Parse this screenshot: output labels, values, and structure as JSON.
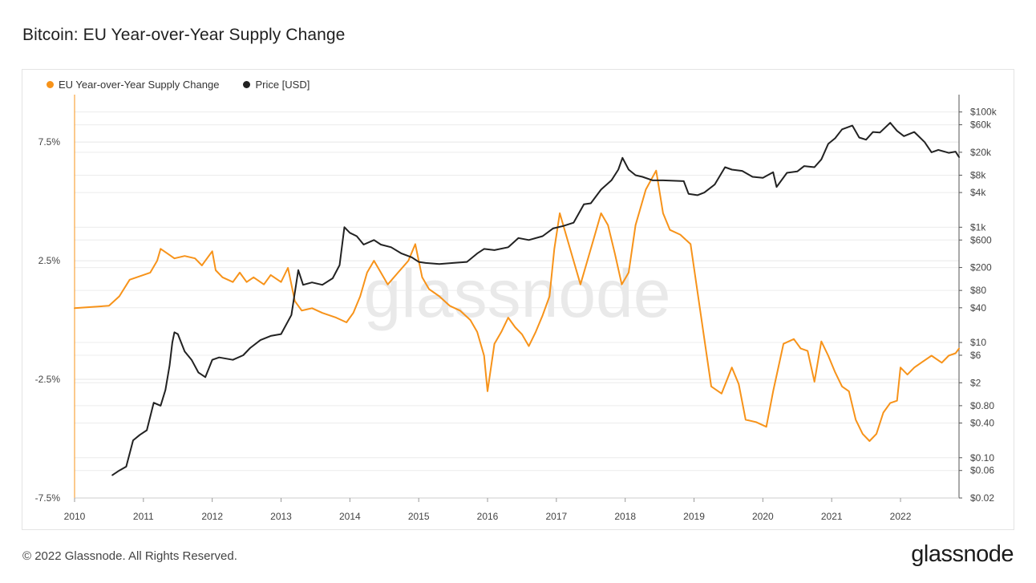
{
  "header": {
    "title": "Bitcoin: EU Year-over-Year Supply Change"
  },
  "legend": {
    "items": [
      {
        "label": "EU Year-over-Year Supply Change",
        "color": "#F7931A"
      },
      {
        "label": "Price [USD]",
        "color": "#222222"
      }
    ]
  },
  "watermark": "glassnode",
  "footer": {
    "copyright": "© 2022 Glassnode. All Rights Reserved.",
    "logo": "glassnode"
  },
  "chart_data": {
    "type": "line",
    "x_axis": {
      "min": 2010,
      "max": 2022.85,
      "ticks": [
        2010,
        2011,
        2012,
        2013,
        2014,
        2015,
        2016,
        2017,
        2018,
        2019,
        2020,
        2021,
        2022
      ],
      "tick_labels": [
        "2010",
        "2011",
        "2012",
        "2013",
        "2014",
        "2015",
        "2016",
        "2017",
        "2018",
        "2019",
        "2020",
        "2021",
        "2022"
      ]
    },
    "y_left": {
      "min": -7.5,
      "max": 9.5,
      "ticks": [
        7.5,
        2.5,
        -2.5,
        -7.5
      ],
      "tick_labels": [
        "7.5%",
        "2.5%",
        "-2.5%",
        "-7.5%"
      ]
    },
    "y_right": {
      "scale": "log",
      "min": 0.02,
      "max": 200000,
      "ticks": [
        100000,
        60000,
        20000,
        8000,
        4000,
        1000,
        600,
        200,
        80,
        40,
        10,
        6,
        2,
        0.8,
        0.4,
        0.1,
        0.06,
        0.02
      ],
      "tick_labels": [
        "$100k",
        "$60k",
        "$20k",
        "$8k",
        "$4k",
        "$1k",
        "$600",
        "$200",
        "$80",
        "$40",
        "$10",
        "$6",
        "$2",
        "$0.80",
        "$0.40",
        "$0.10",
        "$0.06",
        "$0.02"
      ]
    },
    "grid": true,
    "legend_position": "top-left",
    "series": [
      {
        "name": "EU Year-over-Year Supply Change",
        "axis": "left",
        "color": "#F7931A",
        "points": [
          [
            2010.0,
            0.5
          ],
          [
            2010.5,
            0.6
          ],
          [
            2010.65,
            1.0
          ],
          [
            2010.8,
            1.7
          ],
          [
            2011.0,
            1.9
          ],
          [
            2011.1,
            2.0
          ],
          [
            2011.2,
            2.5
          ],
          [
            2011.25,
            3.0
          ],
          [
            2011.35,
            2.8
          ],
          [
            2011.45,
            2.6
          ],
          [
            2011.6,
            2.7
          ],
          [
            2011.75,
            2.6
          ],
          [
            2011.85,
            2.3
          ],
          [
            2012.0,
            2.9
          ],
          [
            2012.05,
            2.1
          ],
          [
            2012.15,
            1.8
          ],
          [
            2012.3,
            1.6
          ],
          [
            2012.4,
            2.0
          ],
          [
            2012.5,
            1.6
          ],
          [
            2012.6,
            1.8
          ],
          [
            2012.75,
            1.5
          ],
          [
            2012.85,
            1.9
          ],
          [
            2013.0,
            1.6
          ],
          [
            2013.1,
            2.2
          ],
          [
            2013.2,
            0.8
          ],
          [
            2013.3,
            0.4
          ],
          [
            2013.45,
            0.5
          ],
          [
            2013.6,
            0.3
          ],
          [
            2013.8,
            0.1
          ],
          [
            2013.95,
            -0.1
          ],
          [
            2014.05,
            0.3
          ],
          [
            2014.15,
            1.0
          ],
          [
            2014.25,
            2.0
          ],
          [
            2014.35,
            2.5
          ],
          [
            2014.45,
            2.0
          ],
          [
            2014.55,
            1.5
          ],
          [
            2014.7,
            2.0
          ],
          [
            2014.85,
            2.5
          ],
          [
            2014.95,
            3.2
          ],
          [
            2015.05,
            1.8
          ],
          [
            2015.15,
            1.3
          ],
          [
            2015.3,
            1.0
          ],
          [
            2015.45,
            0.6
          ],
          [
            2015.6,
            0.4
          ],
          [
            2015.75,
            0.0
          ],
          [
            2015.85,
            -0.5
          ],
          [
            2015.95,
            -1.5
          ],
          [
            2016.0,
            -3.0
          ],
          [
            2016.1,
            -1.0
          ],
          [
            2016.2,
            -0.5
          ],
          [
            2016.3,
            0.1
          ],
          [
            2016.4,
            -0.3
          ],
          [
            2016.5,
            -0.6
          ],
          [
            2016.6,
            -1.1
          ],
          [
            2016.7,
            -0.5
          ],
          [
            2016.8,
            0.2
          ],
          [
            2016.9,
            1.0
          ],
          [
            2016.97,
            3.0
          ],
          [
            2017.05,
            4.5
          ],
          [
            2017.15,
            3.5
          ],
          [
            2017.25,
            2.5
          ],
          [
            2017.35,
            1.5
          ],
          [
            2017.45,
            2.5
          ],
          [
            2017.55,
            3.5
          ],
          [
            2017.65,
            4.5
          ],
          [
            2017.75,
            4.0
          ],
          [
            2017.85,
            2.8
          ],
          [
            2017.95,
            1.5
          ],
          [
            2018.05,
            2.0
          ],
          [
            2018.15,
            4.0
          ],
          [
            2018.3,
            5.5
          ],
          [
            2018.45,
            6.3
          ],
          [
            2018.55,
            4.5
          ],
          [
            2018.65,
            3.8
          ],
          [
            2018.8,
            3.6
          ],
          [
            2018.95,
            3.2
          ],
          [
            2019.05,
            1.2
          ],
          [
            2019.15,
            -0.8
          ],
          [
            2019.25,
            -2.8
          ],
          [
            2019.4,
            -3.1
          ],
          [
            2019.55,
            -2.0
          ],
          [
            2019.65,
            -2.7
          ],
          [
            2019.75,
            -4.2
          ],
          [
            2019.9,
            -4.3
          ],
          [
            2020.05,
            -4.5
          ],
          [
            2020.15,
            -3.0
          ],
          [
            2020.3,
            -1.0
          ],
          [
            2020.45,
            -0.8
          ],
          [
            2020.55,
            -1.2
          ],
          [
            2020.65,
            -1.3
          ],
          [
            2020.75,
            -2.6
          ],
          [
            2020.85,
            -0.9
          ],
          [
            2020.95,
            -1.5
          ],
          [
            2021.05,
            -2.2
          ],
          [
            2021.15,
            -2.8
          ],
          [
            2021.25,
            -3.0
          ],
          [
            2021.35,
            -4.2
          ],
          [
            2021.45,
            -4.8
          ],
          [
            2021.55,
            -5.1
          ],
          [
            2021.65,
            -4.8
          ],
          [
            2021.75,
            -3.9
          ],
          [
            2021.85,
            -3.5
          ],
          [
            2021.95,
            -3.4
          ],
          [
            2022.0,
            -2.0
          ],
          [
            2022.1,
            -2.3
          ],
          [
            2022.2,
            -2.0
          ],
          [
            2022.3,
            -1.8
          ],
          [
            2022.45,
            -1.5
          ],
          [
            2022.6,
            -1.8
          ],
          [
            2022.7,
            -1.5
          ],
          [
            2022.8,
            -1.4
          ],
          [
            2022.85,
            -1.2
          ]
        ]
      },
      {
        "name": "Price [USD]",
        "axis": "right",
        "color": "#222222",
        "points": [
          [
            2010.55,
            0.05
          ],
          [
            2010.65,
            0.06
          ],
          [
            2010.75,
            0.07
          ],
          [
            2010.85,
            0.2
          ],
          [
            2010.95,
            0.25
          ],
          [
            2011.05,
            0.3
          ],
          [
            2011.15,
            0.9
          ],
          [
            2011.25,
            0.8
          ],
          [
            2011.32,
            1.5
          ],
          [
            2011.38,
            4.0
          ],
          [
            2011.42,
            10.0
          ],
          [
            2011.45,
            15.0
          ],
          [
            2011.5,
            14.0
          ],
          [
            2011.6,
            7.0
          ],
          [
            2011.7,
            5.0
          ],
          [
            2011.8,
            3.0
          ],
          [
            2011.9,
            2.5
          ],
          [
            2012.0,
            5.0
          ],
          [
            2012.1,
            5.5
          ],
          [
            2012.3,
            5.0
          ],
          [
            2012.45,
            6.0
          ],
          [
            2012.55,
            8.0
          ],
          [
            2012.7,
            11.0
          ],
          [
            2012.85,
            13.0
          ],
          [
            2013.0,
            14.0
          ],
          [
            2013.15,
            30.0
          ],
          [
            2013.25,
            180.0
          ],
          [
            2013.32,
            100.0
          ],
          [
            2013.45,
            110.0
          ],
          [
            2013.6,
            100.0
          ],
          [
            2013.75,
            130.0
          ],
          [
            2013.85,
            220.0
          ],
          [
            2013.92,
            1000.0
          ],
          [
            2014.0,
            800.0
          ],
          [
            2014.1,
            700.0
          ],
          [
            2014.2,
            500.0
          ],
          [
            2014.35,
            600.0
          ],
          [
            2014.45,
            500.0
          ],
          [
            2014.6,
            450.0
          ],
          [
            2014.75,
            350.0
          ],
          [
            2014.9,
            300.0
          ],
          [
            2015.0,
            250.0
          ],
          [
            2015.1,
            240.0
          ],
          [
            2015.3,
            230.0
          ],
          [
            2015.5,
            240.0
          ],
          [
            2015.7,
            250.0
          ],
          [
            2015.85,
            350.0
          ],
          [
            2015.95,
            420.0
          ],
          [
            2016.1,
            400.0
          ],
          [
            2016.3,
            450.0
          ],
          [
            2016.45,
            650.0
          ],
          [
            2016.6,
            600.0
          ],
          [
            2016.8,
            700.0
          ],
          [
            2016.95,
            950.0
          ],
          [
            2017.1,
            1050.0
          ],
          [
            2017.25,
            1200.0
          ],
          [
            2017.4,
            2500.0
          ],
          [
            2017.5,
            2600.0
          ],
          [
            2017.65,
            4500.0
          ],
          [
            2017.8,
            6500.0
          ],
          [
            2017.9,
            10000.0
          ],
          [
            2017.96,
            16000.0
          ],
          [
            2018.05,
            10000.0
          ],
          [
            2018.15,
            8000.0
          ],
          [
            2018.25,
            7500.0
          ],
          [
            2018.4,
            6500.0
          ],
          [
            2018.55,
            6500.0
          ],
          [
            2018.7,
            6400.0
          ],
          [
            2018.85,
            6300.0
          ],
          [
            2018.92,
            3800.0
          ],
          [
            2019.05,
            3600.0
          ],
          [
            2019.15,
            4000.0
          ],
          [
            2019.3,
            5500.0
          ],
          [
            2019.45,
            11000.0
          ],
          [
            2019.55,
            10000.0
          ],
          [
            2019.7,
            9500.0
          ],
          [
            2019.85,
            7500.0
          ],
          [
            2020.0,
            7200.0
          ],
          [
            2020.15,
            9000.0
          ],
          [
            2020.2,
            5000.0
          ],
          [
            2020.35,
            8800.0
          ],
          [
            2020.5,
            9300.0
          ],
          [
            2020.6,
            11500.0
          ],
          [
            2020.75,
            11000.0
          ],
          [
            2020.85,
            15000.0
          ],
          [
            2020.95,
            28000.0
          ],
          [
            2021.05,
            35000.0
          ],
          [
            2021.15,
            50000.0
          ],
          [
            2021.3,
            58000.0
          ],
          [
            2021.4,
            36000.0
          ],
          [
            2021.5,
            33000.0
          ],
          [
            2021.6,
            45000.0
          ],
          [
            2021.7,
            44000.0
          ],
          [
            2021.85,
            65000.0
          ],
          [
            2021.95,
            47000.0
          ],
          [
            2022.05,
            38000.0
          ],
          [
            2022.2,
            45000.0
          ],
          [
            2022.35,
            30000.0
          ],
          [
            2022.45,
            20000.0
          ],
          [
            2022.55,
            22000.0
          ],
          [
            2022.7,
            19500.0
          ],
          [
            2022.8,
            20500.0
          ],
          [
            2022.85,
            16500.0
          ]
        ]
      }
    ]
  }
}
